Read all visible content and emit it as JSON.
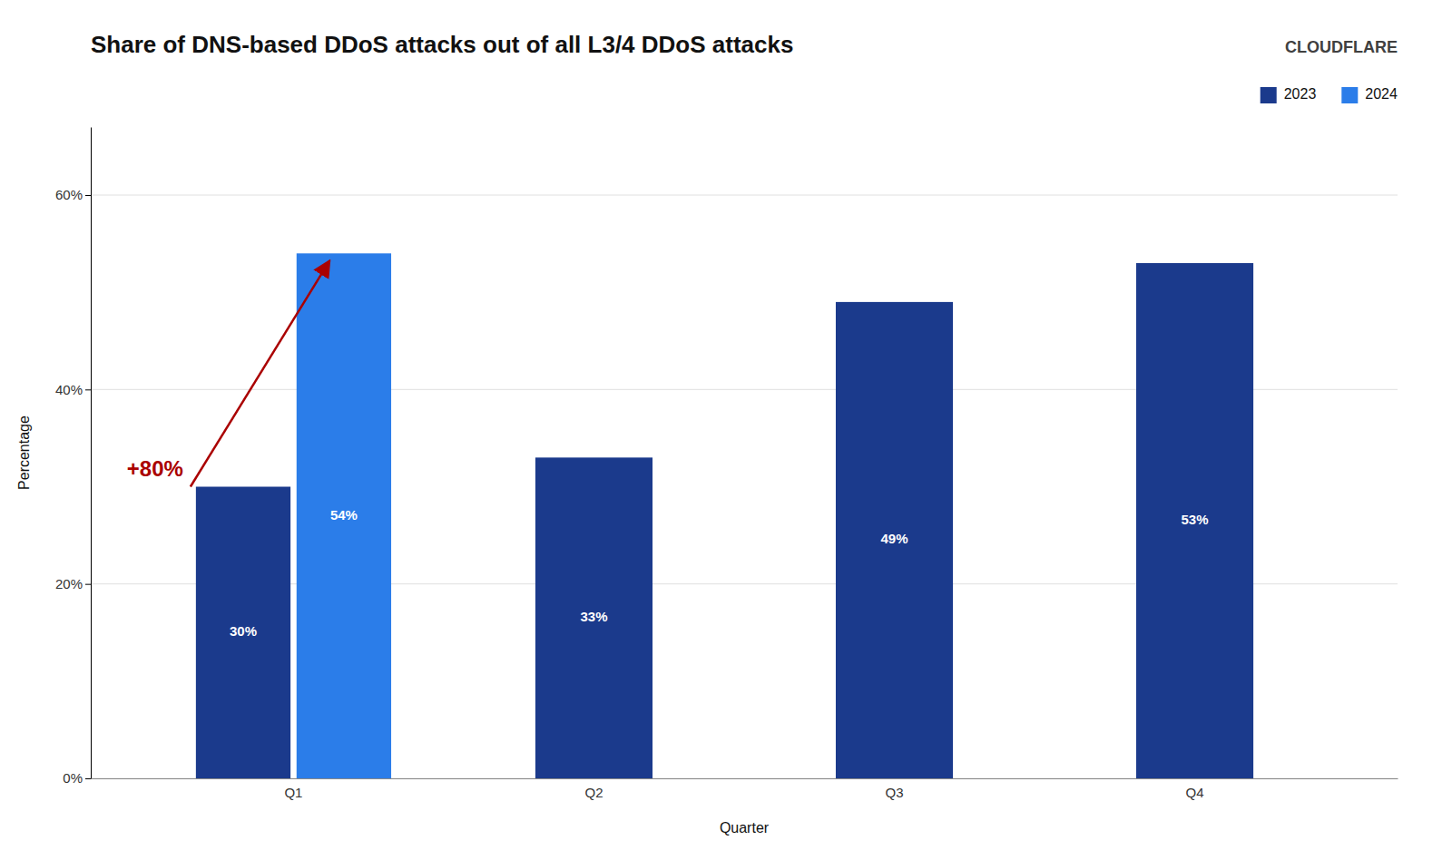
{
  "chart_data": {
    "type": "bar",
    "title": "Share of DNS-based DDoS attacks out of all L3/4 DDoS attacks",
    "xlabel": "Quarter",
    "ylabel": "Percentage",
    "categories": [
      "Q1",
      "Q2",
      "Q3",
      "Q4"
    ],
    "series": [
      {
        "name": "2023",
        "color": "#1b3a8c",
        "values": [
          30,
          33,
          49,
          53
        ],
        "value_labels": [
          "30%",
          "33%",
          "49%",
          "53%"
        ]
      },
      {
        "name": "2024",
        "color": "#2b7de9",
        "values": [
          54,
          null,
          null,
          null
        ],
        "value_labels": [
          "54%",
          null,
          null,
          null
        ]
      }
    ],
    "ylim": [
      0,
      67
    ],
    "yticks": [
      {
        "value": 0,
        "label": "0%"
      },
      {
        "value": 20,
        "label": "20%"
      },
      {
        "value": 40,
        "label": "40%"
      },
      {
        "value": 60,
        "label": "60%"
      }
    ],
    "grid": true,
    "legend": "upper right",
    "data_labels": true,
    "annotations": [
      {
        "text": "+80%",
        "color": "#aa0000"
      },
      {
        "text": "CLOUDFLARE",
        "color": "#404040"
      }
    ]
  }
}
